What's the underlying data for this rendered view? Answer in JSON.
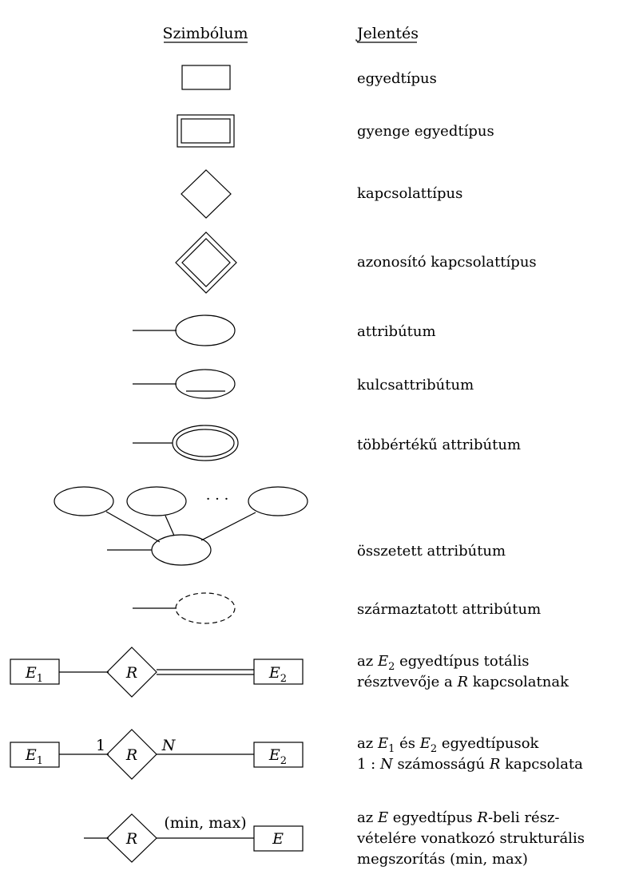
{
  "headers": {
    "symbol": "Szimbólum",
    "meaning": "Jelentés"
  },
  "rows": {
    "entity": {
      "meaning": "egyedtípus"
    },
    "weak_entity": {
      "meaning": "gyenge egyedtípus"
    },
    "relationship": {
      "meaning": "kapcsolattípus"
    },
    "identifying": {
      "meaning": "azonosító kapcsolattípus"
    },
    "attribute": {
      "meaning": "attribútum"
    },
    "key_attribute": {
      "meaning": "kulcsattribútum"
    },
    "multivalued": {
      "meaning": "többértékű attribútum"
    },
    "composite": {
      "meaning": "összetett attribútum",
      "dots": "· · ·"
    },
    "derived": {
      "meaning": "származtatott attribútum"
    },
    "total": {
      "e1": "E",
      "e1_sub": "1",
      "r": "R",
      "e2": "E",
      "e2_sub": "2",
      "line1_pre": "az ",
      "line1_e": "E",
      "line1_sub": "2",
      "line1_post": " egyedtípus totális",
      "line2_pre": "résztvevője a ",
      "line2_r": "R",
      "line2_post": " kapcsolatnak"
    },
    "cardinality": {
      "e1": "E",
      "e1_sub": "1",
      "r": "R",
      "e2": "E",
      "e2_sub": "2",
      "one": "1",
      "n": "N",
      "line1_pre": "az ",
      "line1_e1": "E",
      "line1_sub1": "1",
      "line1_mid": " és ",
      "line1_e2": "E",
      "line1_sub2": "2",
      "line1_post": " egyedtípusok",
      "line2_pre": "1 : ",
      "line2_n": "N",
      "line2_mid": " számosságú ",
      "line2_r": "R",
      "line2_post": " kapcsolata"
    },
    "minmax": {
      "r": "R",
      "e": "E",
      "label": "(min, max)",
      "line1_pre": "az ",
      "line1_e": "E",
      "line1_mid": " egyedtípus ",
      "line1_r": "R",
      "line1_post": "-beli rész-",
      "line2": "vételére vonatkozó strukturális",
      "line3": "megszorítás (min, max)"
    }
  }
}
